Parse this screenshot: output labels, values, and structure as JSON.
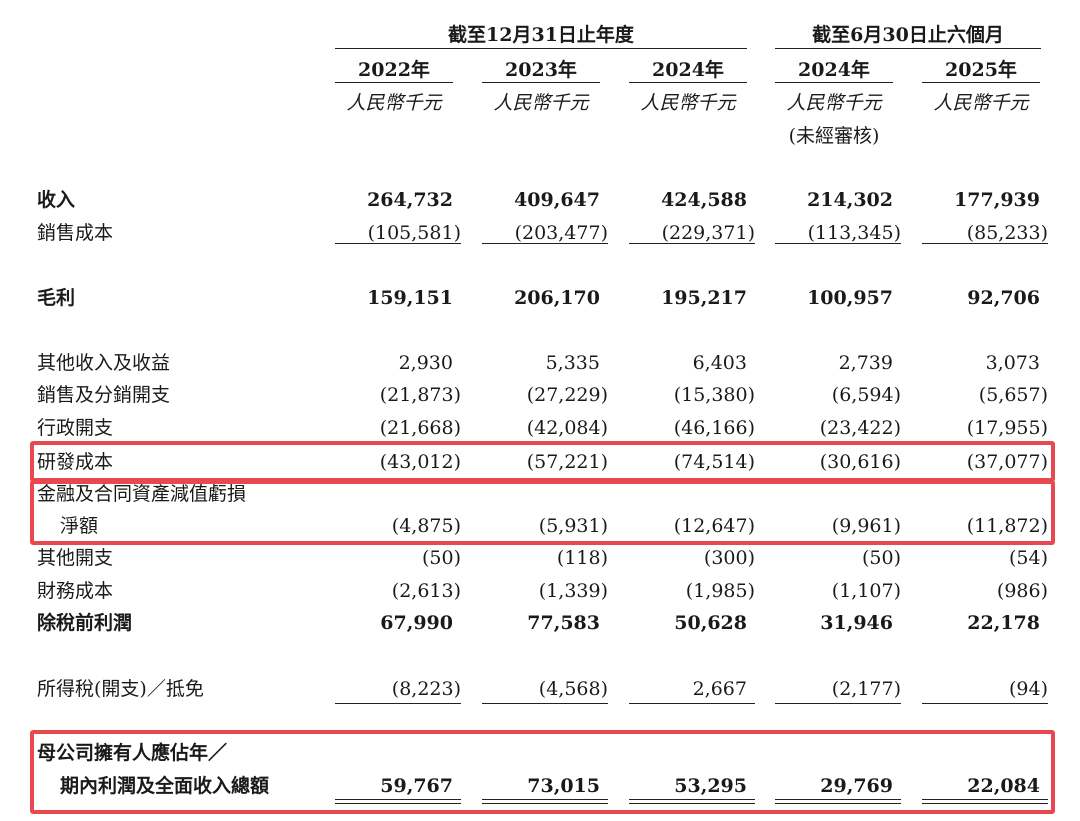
{
  "header": {
    "group1": "截至12月31日止年度",
    "group2": "截至6月30日止六個月",
    "years": [
      "2022年",
      "2023年",
      "2024年",
      "2024年",
      "2025年"
    ],
    "unit": "人民幣千元",
    "unaudited": "(未經審核)"
  },
  "rows": [
    {
      "label": "收入",
      "values": [
        "264,732",
        "409,647",
        "424,588",
        "214,302",
        "177,939"
      ]
    },
    {
      "label": "銷售成本",
      "values": [
        "(105,581)",
        "(203,477)",
        "(229,371)",
        "(113,345)",
        "(85,233)"
      ]
    },
    {
      "label": "毛利",
      "values": [
        "159,151",
        "206,170",
        "195,217",
        "100,957",
        "92,706"
      ]
    },
    {
      "label": "其他收入及收益",
      "values": [
        "2,930",
        "5,335",
        "6,403",
        "2,739",
        "3,073"
      ]
    },
    {
      "label": "銷售及分銷開支",
      "values": [
        "(21,873)",
        "(27,229)",
        "(15,380)",
        "(6,594)",
        "(5,657)"
      ]
    },
    {
      "label": "行政開支",
      "values": [
        "(21,668)",
        "(42,084)",
        "(46,166)",
        "(23,422)",
        "(17,955)"
      ]
    },
    {
      "label": "研發成本",
      "values": [
        "(43,012)",
        "(57,221)",
        "(74,514)",
        "(30,616)",
        "(37,077)"
      ]
    },
    {
      "label": "金融及合同資產減值虧損",
      "label2": "淨額",
      "values": [
        "(4,875)",
        "(5,931)",
        "(12,647)",
        "(9,961)",
        "(11,872)"
      ]
    },
    {
      "label": "其他開支",
      "values": [
        "(50)",
        "(118)",
        "(300)",
        "(50)",
        "(54)"
      ]
    },
    {
      "label": "財務成本",
      "values": [
        "(2,613)",
        "(1,339)",
        "(1,985)",
        "(1,107)",
        "(986)"
      ]
    },
    {
      "label": "除稅前利潤",
      "values": [
        "67,990",
        "77,583",
        "50,628",
        "31,946",
        "22,178"
      ]
    },
    {
      "label": "所得稅(開支)／抵免",
      "values": [
        "(8,223)",
        "(4,568)",
        "2,667",
        "(2,177)",
        "(94)"
      ]
    },
    {
      "label": "母公司擁有人應佔年／",
      "label2": "期內利潤及全面收入總額",
      "values": [
        "59,767",
        "73,015",
        "53,295",
        "29,769",
        "22,084"
      ]
    }
  ],
  "highlight_color": "#e8484f"
}
